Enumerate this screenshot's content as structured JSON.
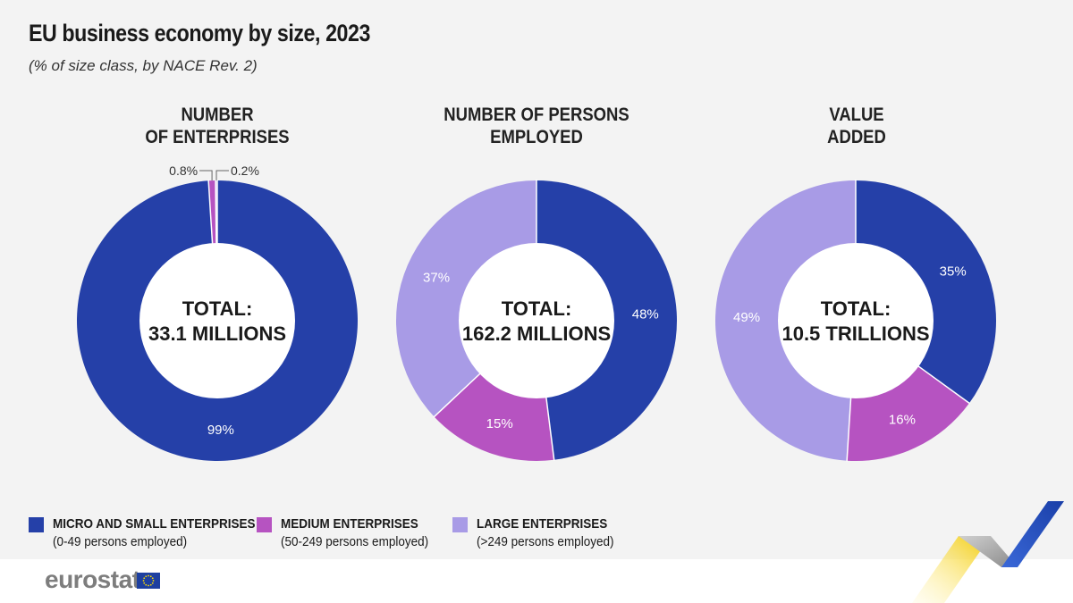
{
  "title": "EU business economy by size, 2023",
  "subtitle": "(% of size class, by NACE Rev. 2)",
  "colors": {
    "micro_small": "#2540a8",
    "medium": "#b653c1",
    "large": "#a89be6",
    "background": "#f3f3f3"
  },
  "chart_data": [
    {
      "type": "pie",
      "title_lines": [
        "NUMBER",
        "OF ENTERPRISES"
      ],
      "center_label": [
        "TOTAL:",
        "33.1 MILLIONS"
      ],
      "categories": [
        "MICRO AND SMALL ENTERPRISES",
        "MEDIUM ENTERPRISES",
        "LARGE ENTERPRISES"
      ],
      "values": [
        99,
        0.8,
        0.2
      ],
      "labels": [
        "99%",
        "0.8%",
        "0.2%"
      ]
    },
    {
      "type": "pie",
      "title_lines": [
        "NUMBER OF PERSONS",
        "EMPLOYED"
      ],
      "center_label": [
        "TOTAL:",
        "162.2 MILLIONS"
      ],
      "categories": [
        "MICRO AND SMALL ENTERPRISES",
        "MEDIUM ENTERPRISES",
        "LARGE ENTERPRISES"
      ],
      "values": [
        48,
        15,
        37
      ],
      "labels": [
        "48%",
        "15%",
        "37%"
      ]
    },
    {
      "type": "pie",
      "title_lines": [
        "VALUE",
        "ADDED"
      ],
      "center_label": [
        "TOTAL:",
        "10.5 TRILLIONS"
      ],
      "categories": [
        "MICRO AND SMALL ENTERPRISES",
        "MEDIUM ENTERPRISES",
        "LARGE ENTERPRISES"
      ],
      "values": [
        35,
        16,
        49
      ],
      "labels": [
        "35%",
        "16%",
        "49%"
      ]
    }
  ],
  "legend": [
    {
      "label": "MICRO AND SMALL ENTERPRISES",
      "sub": "(0-49 persons employed)",
      "color": "#2540a8"
    },
    {
      "label": "MEDIUM ENTERPRISES",
      "sub": "(50-249 persons employed)",
      "color": "#b653c1"
    },
    {
      "label": "LARGE ENTERPRISES",
      "sub": "(>249 persons employed)",
      "color": "#a89be6"
    }
  ],
  "footer": {
    "logo": "eurostat",
    "logo_icon": "eu-flag-icon"
  }
}
